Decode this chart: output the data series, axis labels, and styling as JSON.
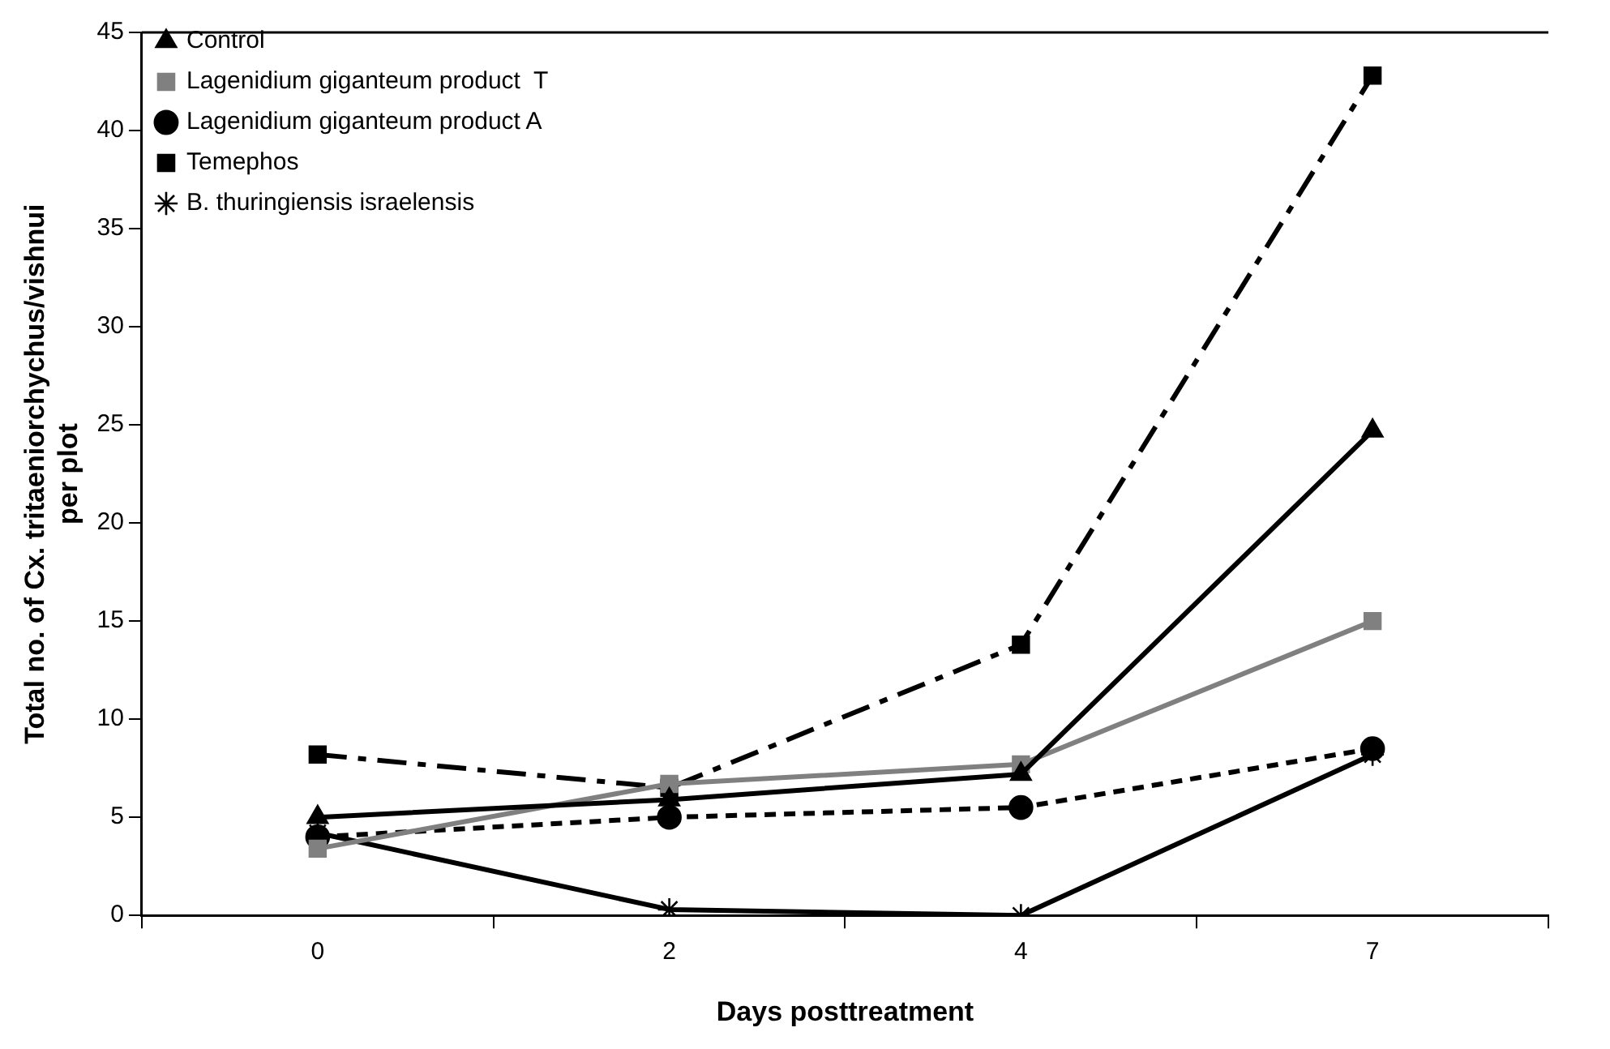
{
  "chart_data": {
    "type": "line",
    "xlabel": "Days posttreatment",
    "ylabel": "Total no. of Cx. tritaeniorchychus/vishnui\nper plot",
    "categories": [
      "0",
      "2",
      "4",
      "7"
    ],
    "ylim": [
      0,
      45
    ],
    "yticks": [
      0,
      5,
      10,
      15,
      20,
      25,
      30,
      35,
      40,
      45
    ],
    "grid": false,
    "legend": "top left",
    "series": [
      {
        "name": "Control",
        "color": "#000000",
        "marker": "triangle",
        "line_style": "solid",
        "values": [
          5.0,
          5.9,
          7.2,
          24.7
        ]
      },
      {
        "name": "Lagenidium giganteum product  T",
        "color": "#808080",
        "marker": "square",
        "line_style": "solid",
        "values": [
          3.4,
          6.7,
          7.7,
          15.0
        ]
      },
      {
        "name": "Lagenidium giganteum product A",
        "color": "#000000",
        "marker": "circle",
        "line_style": "dashed",
        "values": [
          4.0,
          5.0,
          5.5,
          8.5
        ]
      },
      {
        "name": "Temephos",
        "color": "#000000",
        "marker": "square",
        "line_style": "dashdot",
        "values": [
          8.2,
          6.5,
          13.8,
          42.8
        ]
      },
      {
        "name": "B. thuringiensis israelensis",
        "color": "#000000",
        "marker": "cross",
        "line_style": "solid",
        "values": [
          4.2,
          0.3,
          0,
          8.2
        ]
      }
    ]
  }
}
